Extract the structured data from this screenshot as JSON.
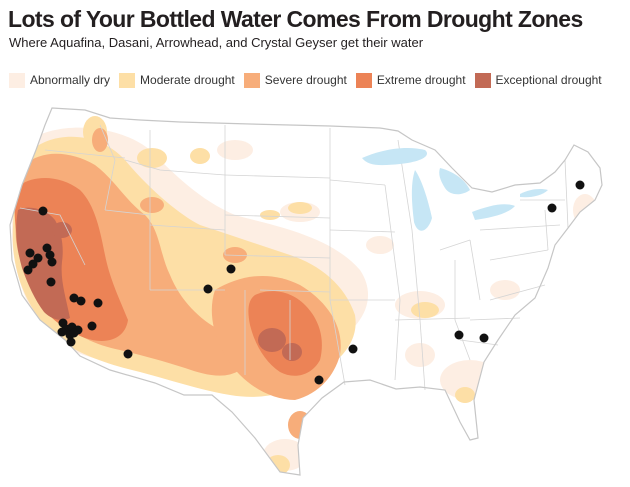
{
  "header": {
    "title": "Lots of Your Bottled Water Comes From Drought Zones",
    "subtitle": "Where Aquafina, Dasani, Arrowhead, and Crystal Geyser get their water"
  },
  "legend": [
    {
      "label": "Abnormally dry",
      "color": "#fdeee3"
    },
    {
      "label": "Moderate drought",
      "color": "#fddfa6"
    },
    {
      "label": "Severe drought",
      "color": "#f7ad7a"
    },
    {
      "label": "Extreme drought",
      "color": "#ec8356"
    },
    {
      "label": "Exceptional drought",
      "color": "#c26a55"
    }
  ],
  "colors": {
    "land": "#ffffff",
    "state_border": "#d4d4d4",
    "outline": "#c6c6c6",
    "lakes": "#c6e6f5",
    "facility_marker": "#111111"
  }
}
